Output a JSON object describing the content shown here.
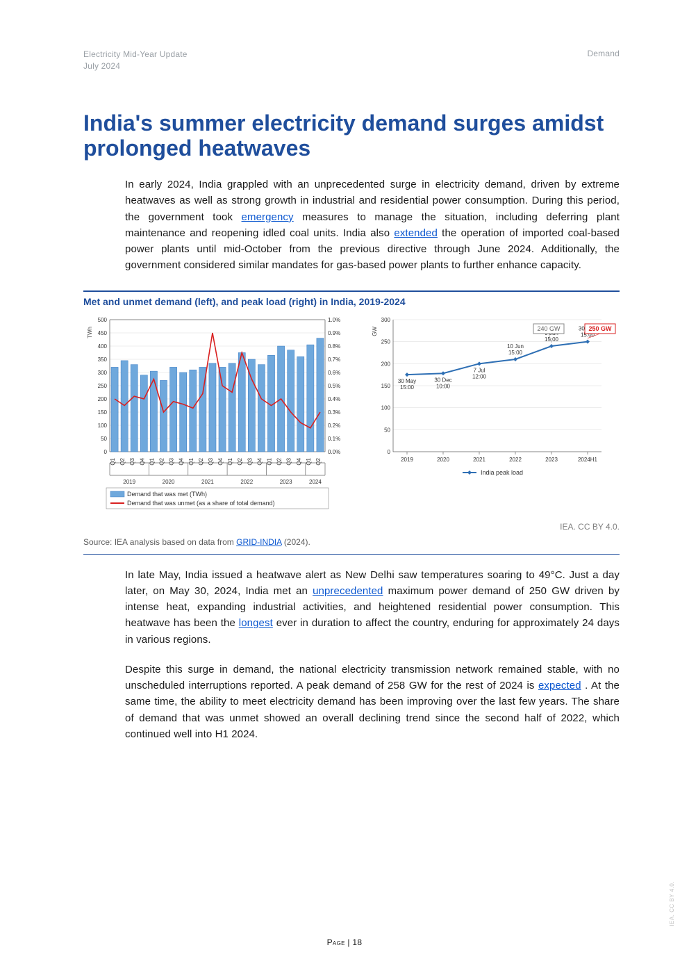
{
  "header": {
    "doc_title": "Electricity Mid-Year Update",
    "doc_date": "July 2024",
    "section": "Demand"
  },
  "title": "India's summer electricity demand surges amidst prolonged heatwaves",
  "para1": {
    "t1": "In early 2024, India grappled with an unprecedented surge in electricity demand, driven by extreme heatwaves as well as strong growth in industrial and residential power consumption. During this period, the government took ",
    "link1": "emergency",
    "t2": " measures to manage the situation, including deferring plant maintenance and reopening idled coal units. India also ",
    "link2": "extended",
    "t3": " the operation of imported coal-based power plants until mid-October from the previous directive through June 2024. Additionally, the government considered similar mandates for gas-based power plants to further enhance capacity."
  },
  "figure": {
    "title": "Met and unmet demand (left), and peak load (right) in India, 2019-2024",
    "attribution": "IEA. CC BY 4.0.",
    "source_prefix": "Source: IEA analysis based on data from ",
    "source_link": "GRID-INDIA",
    "source_suffix": " (2024).",
    "left_chart": {
      "type": "bar+line_dual_axis",
      "background_color": "#ffffff",
      "grid_color": "#d9d9d9",
      "bar_color": "#6fa8dc",
      "bar_border": "#3a7cc4",
      "line_color": "#d92020",
      "line_width": 1.6,
      "bar_width": 0.72,
      "y1_label": "TWh",
      "y1_lim": [
        0,
        500
      ],
      "y1_tick_step": 50,
      "y2_label_suffix": "%",
      "y2_lim": [
        0.0,
        1.0
      ],
      "y2_tick_step": 0.1,
      "year_groups": [
        "2019",
        "2020",
        "2021",
        "2022",
        "2023",
        "2024"
      ],
      "quarters": [
        "Q1",
        "Q2",
        "Q3",
        "Q4"
      ],
      "bars_twh": [
        320,
        345,
        330,
        290,
        305,
        270,
        320,
        300,
        310,
        320,
        335,
        320,
        335,
        375,
        350,
        330,
        365,
        400,
        385,
        360,
        405,
        430
      ],
      "line_pct": [
        0.4,
        0.35,
        0.42,
        0.4,
        0.55,
        0.3,
        0.38,
        0.36,
        0.33,
        0.44,
        0.9,
        0.5,
        0.45,
        0.75,
        0.55,
        0.4,
        0.35,
        0.4,
        0.3,
        0.22,
        0.18,
        0.3
      ],
      "legend": {
        "bar": "Demand that was met (TWh)",
        "line": "Demand that was unmet (as a share of total demand)"
      },
      "axis_fontsize": 8,
      "legend_fontsize": 9
    },
    "right_chart": {
      "type": "line",
      "background_color": "#ffffff",
      "grid_color": "#d9d9d9",
      "line_color": "#2e6fb4",
      "marker_style": "diamond",
      "marker_size": 6,
      "line_width": 2,
      "y_label": "GW",
      "y_lim": [
        0,
        300
      ],
      "y_tick_step": 50,
      "x_labels": [
        "2019",
        "2020",
        "2021",
        "2022",
        "2023",
        "2024H1"
      ],
      "values_gw": [
        175,
        178,
        200,
        210,
        240,
        250
      ],
      "annotations": [
        {
          "i": 0,
          "text": "30 May 15:00"
        },
        {
          "i": 1,
          "text": "30 Dec 10:00"
        },
        {
          "i": 2,
          "text": "7 Jul 12:00"
        },
        {
          "i": 3,
          "text": "10 Jun 15:00"
        },
        {
          "i": 4,
          "text": "9 Jun 15:00"
        },
        {
          "i": 5,
          "text": "30 May 15:00"
        }
      ],
      "badges": [
        {
          "i": 4,
          "text": "240 GW",
          "stroke": "#888888",
          "text_color": "#666666"
        },
        {
          "i": 5,
          "text": "250 GW",
          "stroke": "#d92020",
          "text_color": "#d92020",
          "bold": true
        }
      ],
      "legend": "India peak load",
      "axis_fontsize": 8
    }
  },
  "para2": {
    "t1": "In late May, India issued a heatwave alert as New Delhi saw temperatures soaring to 49°C. Just a day later, on May 30, 2024, India met an ",
    "link1": "unprecedented",
    "t2": " maximum power demand of 250 GW driven by intense heat, expanding industrial activities, and heightened residential power consumption. This heatwave has been the ",
    "link2": "longest",
    "t3": " ever in duration to affect the country, enduring for approximately 24 days in various regions."
  },
  "para3": {
    "t1": "Despite this surge in demand, the national electricity transmission network remained stable, with no unscheduled interruptions reported. A peak demand of 258 GW for the rest of 2024 is ",
    "link1": "expected",
    "t2": ". At the same time, the ability to meet electricity demand has been improving over the last few years. The share of demand that was unmet showed an overall declining trend since the second half of 2022, which continued well into H1 2024."
  },
  "page_number": "Page | 18",
  "side_license": "IEA. CC BY 4.0."
}
